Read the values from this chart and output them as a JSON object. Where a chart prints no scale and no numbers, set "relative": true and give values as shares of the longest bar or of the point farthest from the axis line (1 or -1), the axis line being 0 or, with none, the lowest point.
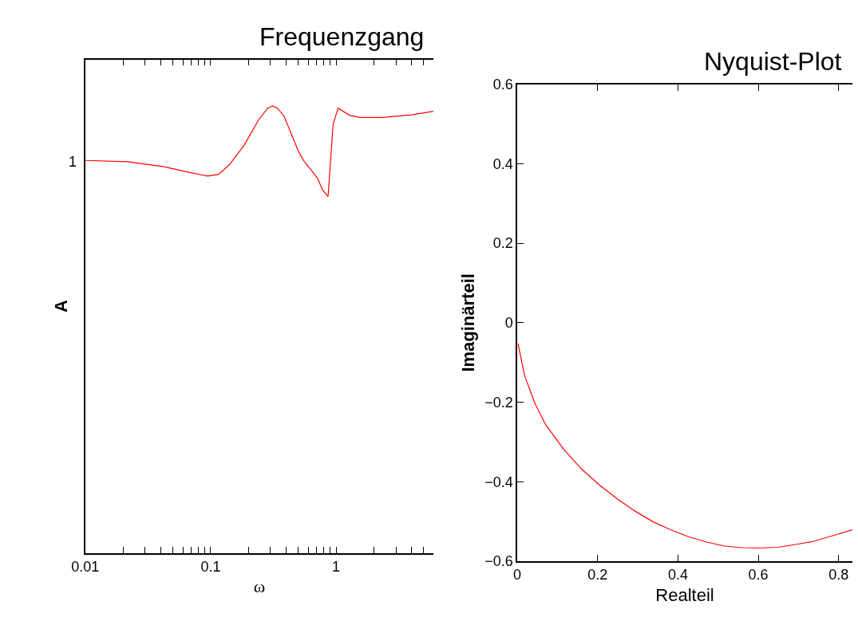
{
  "chart_data": [
    {
      "type": "line",
      "title": "Frequenzgang",
      "xlabel": "ω",
      "ylabel": "A",
      "log": "x",
      "xlim": [
        0.01,
        6
      ],
      "relative": true,
      "annotations": [
        "1"
      ],
      "xticks": [
        0.01,
        {
          "value": 0.02,
          "label": null
        },
        {
          "value": 0.03,
          "label": null
        },
        {
          "value": 0.04,
          "label": null
        },
        {
          "value": 0.05,
          "label": null
        },
        {
          "value": 0.06,
          "label": null
        },
        {
          "value": 0.07,
          "label": null
        },
        {
          "value": 0.08,
          "label": null
        },
        {
          "value": 0.09,
          "label": null
        },
        0.1,
        {
          "value": 0.2,
          "label": null
        },
        {
          "value": 0.3,
          "label": null
        },
        {
          "value": 0.4,
          "label": null
        },
        {
          "value": 0.5,
          "label": null
        },
        {
          "value": 0.6,
          "label": null
        },
        {
          "value": 0.7,
          "label": null
        },
        {
          "value": 0.8,
          "label": null
        },
        {
          "value": 0.9,
          "label": null
        },
        1,
        {
          "value": 2,
          "label": null
        },
        {
          "value": 3,
          "label": null
        },
        {
          "value": 4,
          "label": null
        },
        {
          "value": 5,
          "label": null
        }
      ],
      "line_style": "solid",
      "series": [
        {
          "color": "#ff0000",
          "x": [
            0.01,
            0.0218,
            0.0426,
            0.068,
            0.095,
            0.116,
            0.1416,
            0.185,
            0.2415,
            0.285,
            0.311,
            0.341,
            0.385,
            0.44,
            0.502,
            0.556,
            0.635,
            0.711,
            0.781,
            0.863,
            0.948,
            1.04,
            1.28,
            1.56,
            2.33,
            3.98,
            5.98
          ],
          "values": [
            0.878,
            0.875,
            0.864,
            0.851,
            0.843,
            0.847,
            0.869,
            0.912,
            0.969,
            0.995,
            1,
            0.995,
            0.977,
            0.937,
            0.898,
            0.876,
            0.856,
            0.838,
            0.812,
            0.797,
            0.96,
            0.995,
            0.979,
            0.974,
            0.974,
            0.98,
            0.988
          ]
        }
      ]
    },
    {
      "type": "line",
      "title": "Nyquist-Plot",
      "xlabel": "Realteil",
      "ylabel": "Imaginärteil",
      "xlim": [
        0,
        0.834
      ],
      "ylim": [
        -0.6,
        0.6
      ],
      "xticks": [
        0,
        0.2,
        0.4,
        0.6,
        0.8
      ],
      "yticks": [
        -0.6,
        -0.4,
        -0.2,
        0,
        0.2,
        0.4,
        0.6
      ],
      "line_style": "solid",
      "series": [
        {
          "color": "#ff0000",
          "x": [
            0.002,
            0.018,
            0.044,
            0.071,
            0.116,
            0.16,
            0.204,
            0.249,
            0.293,
            0.338,
            0.382,
            0.427,
            0.471,
            0.516,
            0.56,
            0.598,
            0.649,
            0.693,
            0.738,
            0.782,
            0.834
          ],
          "values": [
            -0.052,
            -0.132,
            -0.203,
            -0.257,
            -0.319,
            -0.368,
            -0.408,
            -0.443,
            -0.474,
            -0.501,
            -0.521,
            -0.539,
            -0.552,
            -0.562,
            -0.566,
            -0.567,
            -0.565,
            -0.558,
            -0.55,
            -0.537,
            -0.521
          ]
        }
      ]
    }
  ]
}
